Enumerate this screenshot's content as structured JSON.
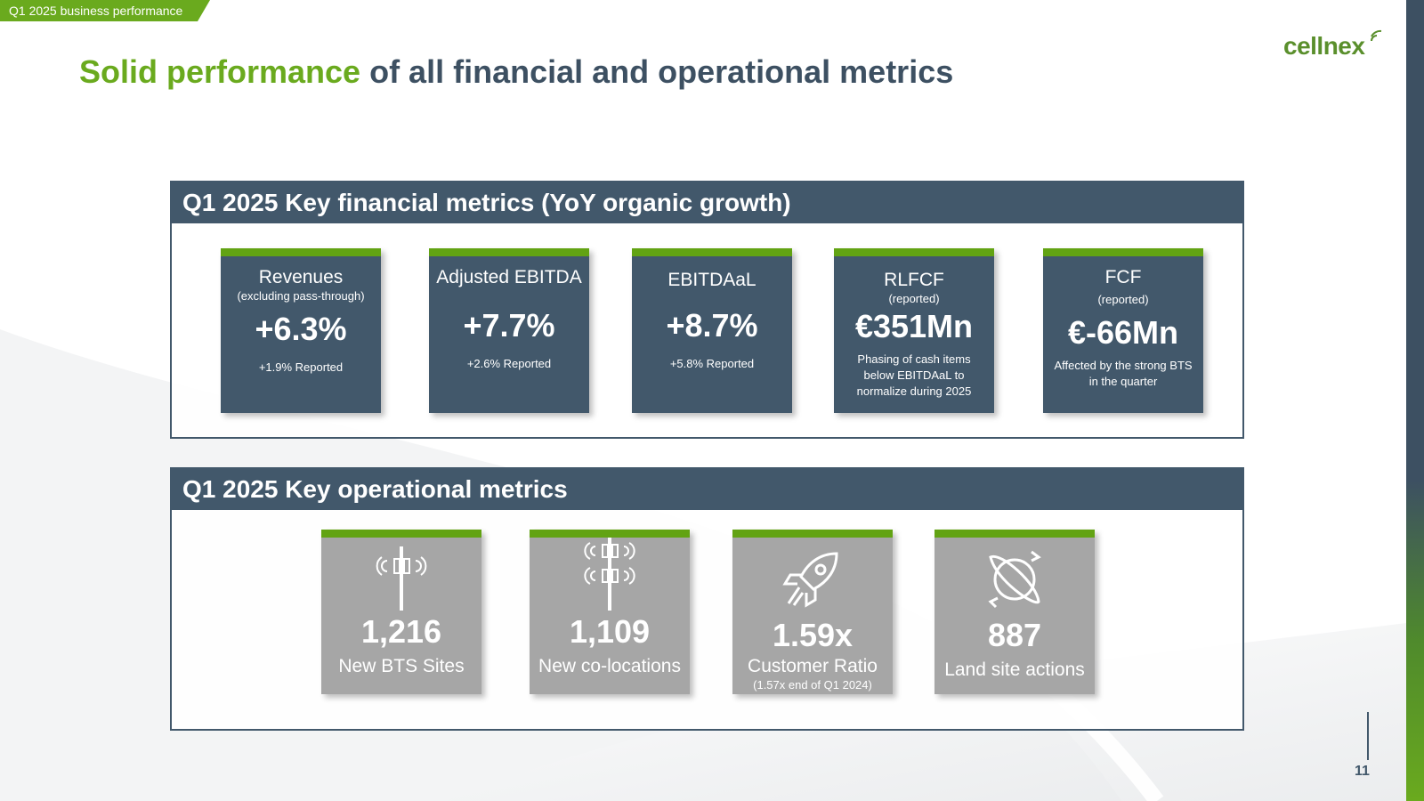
{
  "section_tag": "Q1 2025 business performance",
  "logo": {
    "text": "cellnex"
  },
  "title": {
    "highlight": "Solid performance",
    "rest": " of all financial and operational metrics"
  },
  "colors": {
    "accent_green": "#6aaa1e",
    "navy": "#42586b",
    "grey_card": "#a6a6a6"
  },
  "financial": {
    "heading": "Q1 2025 Key financial metrics (YoY organic growth)",
    "cards": [
      {
        "name": "Revenues",
        "sub": "(excluding pass-through)",
        "value": "+6.3%",
        "note": "+1.9% Reported"
      },
      {
        "name": "Adjusted EBITDA",
        "sub": "",
        "value": "+7.7%",
        "note": "+2.6% Reported"
      },
      {
        "name": "EBITDAaL",
        "sub": "",
        "value": "+8.7%",
        "note": "+5.8% Reported"
      },
      {
        "name": "RLFCF",
        "sub": "(reported)",
        "value": "€351Mn",
        "note": "Phasing of cash items below EBITDAaL to normalize during 2025"
      },
      {
        "name": "FCF",
        "sub": "(reported)",
        "value": "€-66Mn",
        "note": "Affected by the strong BTS in the quarter"
      }
    ]
  },
  "operational": {
    "heading": "Q1 2025 Key operational metrics",
    "cards": [
      {
        "icon": "antenna-icon",
        "value": "1,216",
        "label": "New BTS Sites",
        "sub": ""
      },
      {
        "icon": "double-antenna-icon",
        "value": "1,109",
        "label": "New co-locations",
        "sub": ""
      },
      {
        "icon": "rocket-icon",
        "value": "1.59x",
        "label": "Customer Ratio",
        "sub": "(1.57x end of Q1 2024)"
      },
      {
        "icon": "globe-arrows-icon",
        "value": "887",
        "label": "Land site actions",
        "sub": ""
      }
    ]
  },
  "page_number": "11"
}
